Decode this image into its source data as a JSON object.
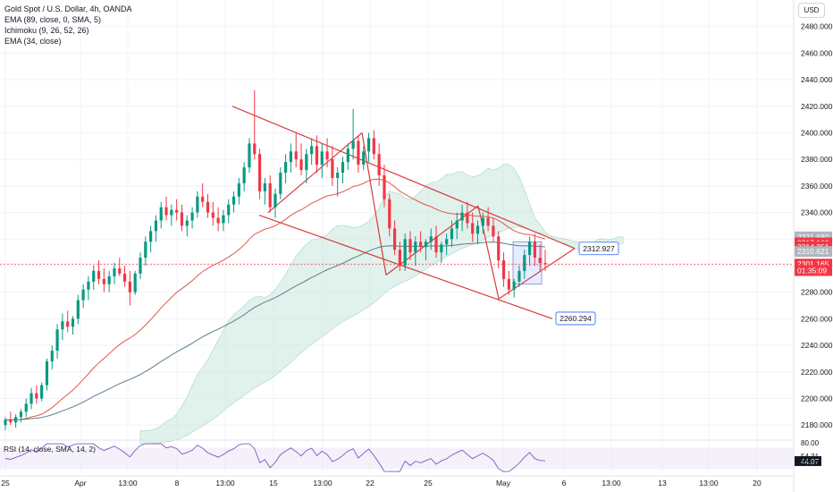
{
  "legend": {
    "symbol": "Gold Spot / U.S. Dollar, 4h, OANDA",
    "ema1": "EMA (89, close, 0, SMA, 5)",
    "ichimoku": "Ichimoku (9, 26, 52, 26)",
    "ema2": "EMA (34, close)",
    "rsi": "RSI (14, close, SMA, 14, 2)"
  },
  "currency_button": "USD",
  "colors": {
    "up": "#089981",
    "down": "#f23645",
    "pattern": "#d83c3c",
    "ema_slow": "#5b7f8e",
    "ema_fast": "#e2574c",
    "cloud_bull": "#c8e6dc",
    "cloud_bear": "#e0e0e0",
    "rsi_line": "#7e57c2",
    "rsi_band": "#ede7f6"
  },
  "chart_data": {
    "type": "candlestick",
    "title": "Gold Spot / U.S. Dollar, 4h, OANDA",
    "ylim": [
      2170,
      2500
    ],
    "y_ticks": [
      "2480.000",
      "2460.000",
      "2440.000",
      "2420.000",
      "2400.000",
      "2380.000",
      "2360.000",
      "2340.000",
      "2320.000",
      "2300.000",
      "2280.000",
      "2260.000",
      "2240.000",
      "2220.000",
      "2200.000",
      "2180.000"
    ],
    "x_ticks": [
      "25",
      "Apr",
      "13:00",
      "8",
      "13:00",
      "15",
      "13:00",
      "22",
      "25",
      "May",
      "6",
      "13:00",
      "13",
      "13:00",
      "20"
    ],
    "price_labels": [
      {
        "text": "2321.680",
        "value": 2321.68,
        "color": "#b2b5be"
      },
      {
        "text": "2317.160",
        "value": 2317.16,
        "color": "#f23645"
      },
      {
        "text": "2314.251",
        "value": 2314.251,
        "color": "#f23645"
      },
      {
        "text": "2310.621",
        "value": 2310.621,
        "color": "#b2b5be"
      },
      {
        "text": "2301.165",
        "value": 2301.165,
        "color": "#f23645"
      },
      {
        "text": "01:35:09",
        "value": 2296.3,
        "color": "#f23645"
      }
    ],
    "annotations": [
      {
        "text": "2312.927",
        "value": 2312.927
      },
      {
        "text": "2260.294",
        "value": 2260.294
      }
    ],
    "rsi": {
      "ticks": [
        "80.00",
        "54.31",
        "44.07",
        "42.14"
      ],
      "ylim": [
        20,
        85
      ],
      "band": [
        30,
        70
      ],
      "last": 44.07,
      "ma": 54.31
    },
    "candles": [
      [
        2180,
        2186,
        2176,
        2184
      ],
      [
        2184,
        2190,
        2180,
        2182
      ],
      [
        2182,
        2188,
        2178,
        2186
      ],
      [
        2186,
        2192,
        2182,
        2190
      ],
      [
        2190,
        2200,
        2186,
        2196
      ],
      [
        2196,
        2208,
        2192,
        2204
      ],
      [
        2204,
        2210,
        2196,
        2200
      ],
      [
        2200,
        2212,
        2198,
        2210
      ],
      [
        2210,
        2230,
        2206,
        2228
      ],
      [
        2228,
        2240,
        2222,
        2236
      ],
      [
        2236,
        2256,
        2230,
        2252
      ],
      [
        2252,
        2264,
        2244,
        2258
      ],
      [
        2258,
        2266,
        2250,
        2254
      ],
      [
        2254,
        2262,
        2248,
        2260
      ],
      [
        2260,
        2278,
        2256,
        2274
      ],
      [
        2274,
        2286,
        2268,
        2282
      ],
      [
        2282,
        2292,
        2274,
        2288
      ],
      [
        2288,
        2300,
        2282,
        2296
      ],
      [
        2296,
        2304,
        2286,
        2290
      ],
      [
        2290,
        2298,
        2280,
        2286
      ],
      [
        2286,
        2296,
        2280,
        2292
      ],
      [
        2292,
        2302,
        2286,
        2298
      ],
      [
        2298,
        2306,
        2292,
        2294
      ],
      [
        2294,
        2300,
        2284,
        2288
      ],
      [
        2288,
        2296,
        2270,
        2280
      ],
      [
        2280,
        2296,
        2278,
        2294
      ],
      [
        2294,
        2310,
        2290,
        2306
      ],
      [
        2306,
        2322,
        2300,
        2318
      ],
      [
        2318,
        2330,
        2310,
        2326
      ],
      [
        2326,
        2338,
        2318,
        2334
      ],
      [
        2334,
        2348,
        2328,
        2344
      ],
      [
        2344,
        2352,
        2334,
        2338
      ],
      [
        2338,
        2346,
        2330,
        2342
      ],
      [
        2342,
        2350,
        2334,
        2340
      ],
      [
        2340,
        2346,
        2326,
        2330
      ],
      [
        2330,
        2338,
        2322,
        2334
      ],
      [
        2334,
        2344,
        2328,
        2340
      ],
      [
        2340,
        2356,
        2336,
        2352
      ],
      [
        2352,
        2362,
        2344,
        2348
      ],
      [
        2348,
        2354,
        2336,
        2340
      ],
      [
        2340,
        2348,
        2330,
        2336
      ],
      [
        2336,
        2344,
        2326,
        2332
      ],
      [
        2332,
        2342,
        2326,
        2338
      ],
      [
        2338,
        2350,
        2332,
        2346
      ],
      [
        2346,
        2356,
        2340,
        2352
      ],
      [
        2352,
        2366,
        2346,
        2362
      ],
      [
        2362,
        2378,
        2356,
        2374
      ],
      [
        2374,
        2396,
        2370,
        2392
      ],
      [
        2392,
        2432,
        2380,
        2384
      ],
      [
        2384,
        2388,
        2350,
        2356
      ],
      [
        2356,
        2366,
        2346,
        2362
      ],
      [
        2362,
        2368,
        2340,
        2344
      ],
      [
        2344,
        2358,
        2336,
        2354
      ],
      [
        2354,
        2374,
        2350,
        2370
      ],
      [
        2370,
        2384,
        2362,
        2378
      ],
      [
        2378,
        2392,
        2370,
        2386
      ],
      [
        2386,
        2400,
        2374,
        2380
      ],
      [
        2380,
        2392,
        2368,
        2372
      ],
      [
        2372,
        2388,
        2362,
        2384
      ],
      [
        2384,
        2396,
        2376,
        2390
      ],
      [
        2390,
        2398,
        2370,
        2376
      ],
      [
        2376,
        2392,
        2366,
        2386
      ],
      [
        2386,
        2396,
        2374,
        2380
      ],
      [
        2380,
        2390,
        2360,
        2366
      ],
      [
        2366,
        2374,
        2352,
        2370
      ],
      [
        2370,
        2382,
        2362,
        2378
      ],
      [
        2378,
        2392,
        2372,
        2388
      ],
      [
        2388,
        2418,
        2380,
        2394
      ],
      [
        2394,
        2398,
        2370,
        2376
      ],
      [
        2376,
        2390,
        2372,
        2386
      ],
      [
        2386,
        2400,
        2378,
        2396
      ],
      [
        2396,
        2402,
        2380,
        2384
      ],
      [
        2384,
        2392,
        2360,
        2368
      ],
      [
        2368,
        2376,
        2344,
        2350
      ],
      [
        2350,
        2354,
        2322,
        2328
      ],
      [
        2328,
        2334,
        2308,
        2312
      ],
      [
        2312,
        2318,
        2296,
        2300
      ],
      [
        2300,
        2324,
        2296,
        2320
      ],
      [
        2320,
        2326,
        2304,
        2310
      ],
      [
        2310,
        2322,
        2300,
        2318
      ],
      [
        2318,
        2326,
        2310,
        2314
      ],
      [
        2314,
        2320,
        2304,
        2318
      ],
      [
        2318,
        2328,
        2312,
        2322
      ],
      [
        2322,
        2330,
        2306,
        2310
      ],
      [
        2310,
        2318,
        2302,
        2316
      ],
      [
        2316,
        2324,
        2308,
        2320
      ],
      [
        2320,
        2334,
        2314,
        2328
      ],
      [
        2328,
        2340,
        2320,
        2334
      ],
      [
        2334,
        2346,
        2326,
        2340
      ],
      [
        2340,
        2348,
        2328,
        2332
      ],
      [
        2332,
        2340,
        2318,
        2324
      ],
      [
        2324,
        2334,
        2316,
        2330
      ],
      [
        2330,
        2340,
        2324,
        2336
      ],
      [
        2336,
        2344,
        2326,
        2330
      ],
      [
        2330,
        2336,
        2318,
        2322
      ],
      [
        2322,
        2326,
        2298,
        2304
      ],
      [
        2304,
        2310,
        2284,
        2290
      ],
      [
        2290,
        2296,
        2278,
        2282
      ],
      [
        2282,
        2290,
        2276,
        2288
      ],
      [
        2288,
        2300,
        2284,
        2296
      ],
      [
        2296,
        2312,
        2290,
        2308
      ],
      [
        2308,
        2322,
        2300,
        2318
      ],
      [
        2318,
        2324,
        2300,
        2306
      ],
      [
        2306,
        2316,
        2296,
        2302
      ],
      [
        2302,
        2312,
        2296,
        2301
      ]
    ]
  }
}
